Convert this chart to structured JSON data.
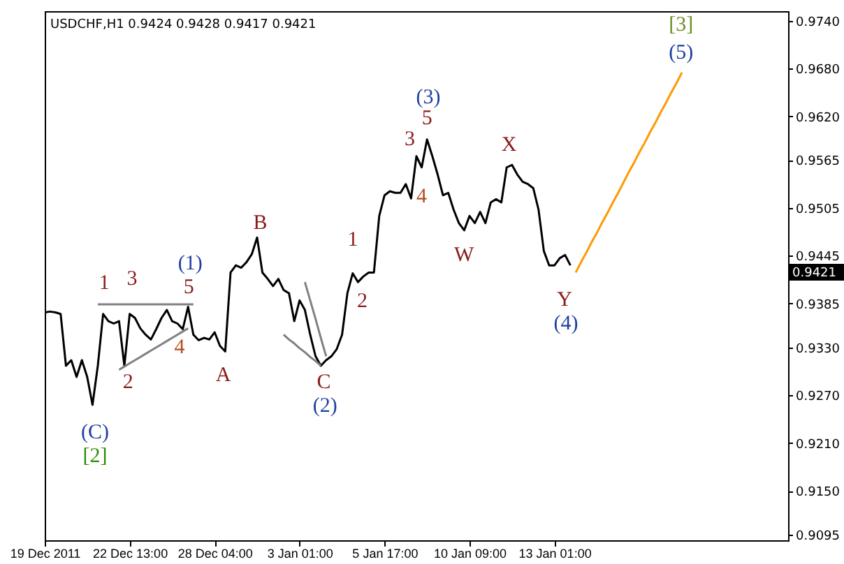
{
  "chart_data": {
    "type": "line",
    "title": "USDCHF,H1  0.9424 0.9428 0.9417 0.9421",
    "categories": [
      "19 Dec 2011",
      null,
      null,
      null,
      null,
      null,
      null,
      null,
      null,
      null,
      null,
      null,
      null,
      null,
      null,
      null,
      "22 Dec 13:00",
      null,
      null,
      null,
      null,
      null,
      null,
      null,
      null,
      null,
      null,
      null,
      null,
      null,
      null,
      null,
      "28 Dec 04:00",
      null,
      null,
      null,
      null,
      null,
      null,
      null,
      null,
      null,
      null,
      null,
      null,
      null,
      null,
      null,
      "3 Jan 01:00",
      null,
      null,
      null,
      null,
      null,
      null,
      null,
      null,
      null,
      null,
      null,
      null,
      null,
      null,
      null,
      "5 Jan 17:00",
      null,
      null,
      null,
      null,
      null,
      null,
      null,
      null,
      null,
      null,
      null,
      null,
      null,
      null,
      null,
      "10 Jan 09:00",
      null,
      null,
      null,
      null,
      null,
      null,
      null,
      null,
      null,
      null,
      null,
      null,
      null,
      null,
      null,
      "13 Jan 01:00",
      null,
      null,
      null,
      null,
      null,
      null,
      null,
      null,
      null,
      null,
      null,
      null,
      null,
      null,
      null,
      null,
      null,
      null,
      null,
      null,
      null,
      null,
      null,
      null,
      null,
      null,
      null,
      null,
      null,
      null,
      null,
      null,
      null,
      null,
      null,
      null,
      null,
      null,
      null,
      null,
      null,
      null,
      null,
      null
    ],
    "ylim": [
      0.9088,
      0.9752
    ],
    "yticks": [
      {
        "value": 0.974,
        "label": "0.9740"
      },
      {
        "value": 0.968,
        "label": "0.9680"
      },
      {
        "value": 0.962,
        "label": "0.9620"
      },
      0.9565,
      0.9505,
      0.9445,
      0.9385,
      {
        "value": 0.933,
        "label": "0.9330"
      },
      {
        "value": 0.927,
        "label": "0.9270"
      },
      {
        "value": 0.921,
        "label": "0.9210"
      },
      {
        "value": 0.915,
        "label": "0.9150"
      },
      0.9095
    ],
    "series": [
      {
        "color": "#000000",
        "values": [
          0.9374,
          0.9375,
          0.9374,
          0.9372,
          0.9307,
          0.9314,
          0.9293,
          0.9314,
          0.9293,
          0.9258,
          0.9307,
          0.9372,
          0.9363,
          0.936,
          0.9363,
          0.9307,
          0.9372,
          0.9367,
          0.9354,
          0.9346,
          0.934,
          0.9353,
          0.9367,
          0.9377,
          0.9363,
          0.936,
          0.9353,
          0.9381,
          0.9346,
          0.9339,
          0.9342,
          0.934,
          0.9349,
          0.9332,
          0.9325,
          0.9424,
          0.9433,
          0.943,
          0.9437,
          0.9447,
          0.9468,
          0.9424,
          0.9416,
          0.9407,
          0.9416,
          0.9402,
          0.9398,
          0.9363,
          0.9389,
          0.9377,
          0.9346,
          0.9319,
          0.9307,
          0.9314,
          0.9319,
          0.9328,
          0.9346,
          0.9398,
          0.9423,
          0.9412,
          0.9419,
          0.9424,
          0.9424,
          0.9495,
          0.9521,
          0.9526,
          0.9524,
          0.9524,
          0.9535,
          0.9517,
          0.957,
          0.9556,
          0.9591,
          0.957,
          0.9547,
          0.9521,
          0.9524,
          0.9503,
          0.9486,
          0.9477,
          0.9495,
          0.9486,
          0.95,
          0.9486,
          0.9512,
          0.9516,
          0.9512,
          0.9556,
          0.9559,
          0.9547,
          0.9538,
          0.9535,
          0.953,
          0.9503,
          0.9451,
          0.9433,
          0.9433,
          0.9442,
          0.9446,
          0.9433,
          null,
          null,
          null,
          null,
          null,
          null,
          null,
          null,
          null,
          null,
          null,
          null,
          null,
          null,
          null,
          null,
          null,
          null,
          null,
          null,
          null,
          null,
          null,
          null,
          null,
          null,
          null,
          null,
          null,
          null,
          null,
          null,
          null,
          null,
          null,
          null,
          null,
          null,
          null,
          null,
          null
        ]
      },
      {
        "color": "#ff9900",
        "values": [
          null,
          null,
          null,
          null,
          null,
          null,
          null,
          null,
          null,
          null,
          null,
          null,
          null,
          null,
          null,
          null,
          null,
          null,
          null,
          null,
          null,
          null,
          null,
          null,
          null,
          null,
          null,
          null,
          null,
          null,
          null,
          null,
          null,
          null,
          null,
          null,
          null,
          null,
          null,
          null,
          null,
          null,
          null,
          null,
          null,
          null,
          null,
          null,
          null,
          null,
          null,
          null,
          null,
          null,
          null,
          null,
          null,
          null,
          null,
          null,
          null,
          null,
          null,
          null,
          null,
          null,
          null,
          null,
          null,
          null,
          null,
          null,
          null,
          null,
          null,
          null,
          null,
          null,
          null,
          null,
          null,
          null,
          null,
          null,
          null,
          null,
          null,
          null,
          null,
          null,
          null,
          null,
          null,
          null,
          null,
          null,
          null,
          null,
          null,
          null,
          0.9424,
          0.9437,
          0.9449,
          0.9462,
          0.9474,
          0.9487,
          0.9499,
          0.9512,
          0.9524,
          0.9537,
          0.955,
          0.9562,
          0.9575,
          0.9587,
          0.96,
          0.9612,
          0.9625,
          0.9637,
          0.965,
          0.9662,
          0.9675,
          null,
          null,
          null,
          null,
          null,
          null,
          null,
          null,
          null,
          null,
          null,
          null,
          null,
          null,
          null,
          null,
          null,
          null,
          null,
          null
        ]
      },
      {
        "color": "#808080",
        "values": [
          null,
          null,
          null,
          null,
          null,
          null,
          null,
          null,
          null,
          null,
          0.9384,
          0.9384,
          0.9384,
          0.9384,
          0.9384,
          0.9384,
          0.9384,
          0.9384,
          0.9384,
          0.9384,
          0.9384,
          0.9384,
          0.9384,
          0.9384,
          0.9384,
          0.9384,
          0.9384,
          0.9384,
          0.9384,
          null,
          null,
          null,
          null,
          null,
          null,
          null,
          null,
          null,
          null,
          null,
          null,
          null,
          null,
          null,
          null,
          null,
          null,
          null,
          null,
          null,
          null,
          null,
          null,
          null,
          null,
          null,
          null,
          null,
          null,
          null,
          null,
          null,
          null,
          null,
          null,
          null,
          null,
          null,
          null,
          null,
          null,
          null,
          null,
          null,
          null,
          null,
          null,
          null,
          null,
          null,
          null,
          null,
          null,
          null,
          null,
          null,
          null,
          null,
          null,
          null,
          null,
          null,
          null,
          null,
          null,
          null,
          null,
          null,
          null,
          null,
          null,
          null,
          null,
          null,
          null,
          null,
          null,
          null,
          null,
          null,
          null,
          null,
          null,
          null,
          null,
          null,
          null,
          null,
          null,
          null,
          null,
          null,
          null,
          null,
          null,
          null,
          null,
          null,
          null,
          null,
          null,
          null,
          null,
          null,
          null,
          null,
          null,
          null,
          null,
          null,
          null
        ]
      },
      {
        "color": "#808080",
        "values": [
          null,
          null,
          null,
          null,
          null,
          null,
          null,
          null,
          null,
          null,
          null,
          null,
          null,
          null,
          0.9302,
          0.9306,
          0.931,
          0.9314,
          0.9318,
          0.9322,
          0.9326,
          0.933,
          0.9334,
          0.9338,
          0.9342,
          0.9346,
          0.935,
          0.9354,
          null,
          null,
          null,
          null,
          null,
          null,
          null,
          null,
          null,
          null,
          null,
          null,
          null,
          null,
          null,
          null,
          null,
          null,
          null,
          null,
          null,
          null,
          null,
          null,
          null,
          null,
          null,
          null,
          null,
          null,
          null,
          null,
          null,
          null,
          null,
          null,
          null,
          null,
          null,
          null,
          null,
          null,
          null,
          null,
          null,
          null,
          null,
          null,
          null,
          null,
          null,
          null,
          null,
          null,
          null,
          null,
          null,
          null,
          null,
          null,
          null,
          null,
          null,
          null,
          null,
          null,
          null,
          null,
          null,
          null,
          null,
          null,
          null,
          null,
          null,
          null,
          null,
          null,
          null,
          null,
          null,
          null,
          null,
          null,
          null,
          null,
          null,
          null,
          null,
          null,
          null,
          null,
          null,
          null,
          null,
          null,
          null,
          null,
          null,
          null,
          null,
          null,
          null,
          null,
          null,
          null,
          null,
          null,
          null,
          null,
          null,
          null,
          null
        ]
      },
      {
        "color": "#808080",
        "values": [
          null,
          null,
          null,
          null,
          null,
          null,
          null,
          null,
          null,
          null,
          null,
          null,
          null,
          null,
          null,
          null,
          null,
          null,
          null,
          null,
          null,
          null,
          null,
          null,
          null,
          null,
          null,
          null,
          null,
          null,
          null,
          null,
          null,
          null,
          null,
          null,
          null,
          null,
          null,
          null,
          null,
          null,
          null,
          null,
          null,
          0.9346,
          0.934,
          0.9335,
          0.9329,
          0.9324,
          0.9318,
          0.9313,
          0.9307,
          null,
          null,
          null,
          null,
          null,
          null,
          null,
          null,
          null,
          null,
          null,
          null,
          null,
          null,
          null,
          null,
          null,
          null,
          null,
          null,
          null,
          null,
          null,
          null,
          null,
          null,
          null,
          null,
          null,
          null,
          null,
          null,
          null,
          null,
          null,
          null,
          null,
          null,
          null,
          null,
          null,
          null,
          null,
          null,
          null,
          null,
          null,
          null,
          null,
          null,
          null,
          null,
          null,
          null,
          null,
          null,
          null,
          null,
          null,
          null,
          null,
          null,
          null,
          null,
          null,
          null,
          null,
          null,
          null,
          null,
          null,
          null,
          null,
          null,
          null,
          null,
          null,
          null,
          null,
          null,
          null,
          null,
          null,
          null,
          null,
          null,
          null,
          null
        ]
      },
      {
        "color": "#808080",
        "values": [
          null,
          null,
          null,
          null,
          null,
          null,
          null,
          null,
          null,
          null,
          null,
          null,
          null,
          null,
          null,
          null,
          null,
          null,
          null,
          null,
          null,
          null,
          null,
          null,
          null,
          null,
          null,
          null,
          null,
          null,
          null,
          null,
          null,
          null,
          null,
          null,
          null,
          null,
          null,
          null,
          null,
          null,
          null,
          null,
          null,
          null,
          null,
          null,
          null,
          0.9412,
          0.9389,
          0.9366,
          0.9342,
          0.9319,
          null,
          null,
          null,
          null,
          null,
          null,
          null,
          null,
          null,
          null,
          null,
          null,
          null,
          null,
          null,
          null,
          null,
          null,
          null,
          null,
          null,
          null,
          null,
          null,
          null,
          null,
          null,
          null,
          null,
          null,
          null,
          null,
          null,
          null,
          null,
          null,
          null,
          null,
          null,
          null,
          null,
          null,
          null,
          null,
          null,
          null,
          null,
          null,
          null,
          null,
          null,
          null,
          null,
          null,
          null,
          null,
          null,
          null,
          null,
          null,
          null,
          null,
          null,
          null,
          null,
          null,
          null,
          null,
          null,
          null,
          null,
          null,
          null,
          null,
          null,
          null,
          null,
          null,
          null,
          null,
          null,
          null,
          null,
          null,
          null,
          null,
          null
        ]
      }
    ],
    "annotations": [
      "1",
      "3",
      "(1)",
      "5",
      "2",
      "4",
      "A",
      "B",
      "C",
      "(2)",
      "1",
      "2",
      "3",
      "(3)",
      "5",
      "4",
      "W",
      "X",
      "Y",
      "(4)",
      "(C)",
      "[2]",
      "[3]",
      "(5)",
      "0.9421"
    ]
  }
}
